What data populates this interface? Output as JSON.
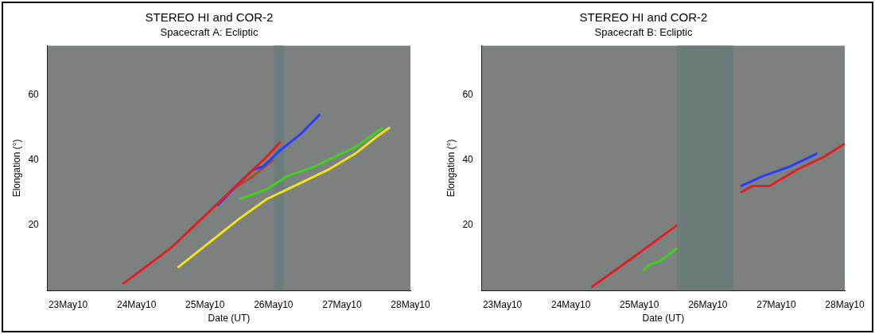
{
  "chart_data": [
    {
      "type": "line",
      "title": "STEREO HI and COR-2",
      "subtitle": "Spacecraft A: Ecliptic",
      "x_label": "Date (UT)",
      "y_label": "Elongation (°)",
      "xlim": [
        22.7,
        28.0
      ],
      "xticks": [
        {
          "value": 23,
          "label": "23May10"
        },
        {
          "value": 24,
          "label": "24May10"
        },
        {
          "value": 25,
          "label": "25May10"
        },
        {
          "value": 26,
          "label": "26May10"
        },
        {
          "value": 27,
          "label": "27May10"
        },
        {
          "value": 28,
          "label": "28May10"
        }
      ],
      "ylim": [
        0,
        75
      ],
      "yticks": [
        20,
        40,
        60
      ],
      "grid": false,
      "data_gaps": [
        [
          26.01,
          26.15
        ]
      ],
      "series": [
        {
          "color": "#e02020",
          "x": [
            23.8,
            24.5,
            25.0,
            25.5,
            25.9,
            26.1
          ],
          "values": [
            2,
            13,
            23,
            33,
            41,
            45.5
          ]
        },
        {
          "color": "#2a3cff",
          "x": [
            25.18,
            25.5,
            25.7,
            25.85,
            26.1,
            26.4,
            26.68
          ],
          "values": [
            26,
            33,
            37,
            38,
            43,
            48,
            54
          ]
        },
        {
          "color": "#a0522d",
          "x": [
            25.4,
            25.7,
            26.0
          ],
          "values": [
            31,
            35,
            40
          ]
        },
        {
          "color": "#f0e020",
          "x": [
            24.6,
            24.9,
            25.2,
            25.5,
            25.9,
            26.3,
            26.8,
            27.2,
            27.5,
            27.7
          ],
          "values": [
            7,
            12,
            17,
            22,
            28,
            32,
            37,
            42,
            47,
            50
          ]
        },
        {
          "color": "#40d020",
          "x": [
            25.5,
            25.9,
            26.2,
            26.6,
            26.9,
            27.2,
            27.6
          ],
          "values": [
            28,
            31,
            35,
            38,
            41,
            44,
            50
          ]
        }
      ]
    },
    {
      "type": "line",
      "title": "STEREO HI and COR-2",
      "subtitle": "Spacecraft B: Ecliptic",
      "x_label": "Date (UT)",
      "y_label": "Elongation (°)",
      "xlim": [
        22.7,
        28.0
      ],
      "xticks": [
        {
          "value": 23,
          "label": "23May10"
        },
        {
          "value": 24,
          "label": "24May10"
        },
        {
          "value": 25,
          "label": "25May10"
        },
        {
          "value": 26,
          "label": "26May10"
        },
        {
          "value": 27,
          "label": "27May10"
        },
        {
          "value": 28,
          "label": "28May10"
        }
      ],
      "ylim": [
        0,
        75
      ],
      "yticks": [
        20,
        40,
        60
      ],
      "grid": false,
      "data_gaps": [
        [
          25.55,
          26.37
        ]
      ],
      "series": [
        {
          "color": "#e02020",
          "x": [
            24.3,
            24.9,
            25.55
          ],
          "values": [
            1,
            10,
            20
          ]
        },
        {
          "color": "#e02020",
          "x": [
            26.48,
            26.65,
            26.9,
            27.3,
            27.7,
            28.0
          ],
          "values": [
            30,
            32,
            32,
            37,
            41,
            45
          ]
        },
        {
          "color": "#2a3cff",
          "x": [
            26.48,
            26.8,
            27.2,
            27.6
          ],
          "values": [
            32,
            35,
            38,
            42
          ]
        },
        {
          "color": "#40d020",
          "x": [
            25.05,
            25.15,
            25.3,
            25.55
          ],
          "values": [
            6,
            8,
            9,
            13
          ]
        }
      ]
    }
  ]
}
